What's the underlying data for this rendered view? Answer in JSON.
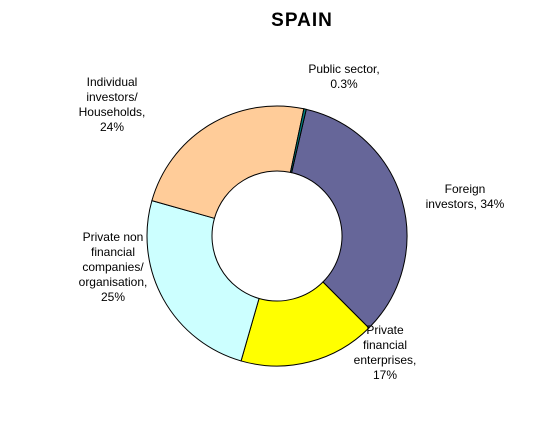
{
  "chart_data": {
    "type": "pie",
    "variant": "doughnut",
    "title": "SPAIN",
    "grid": false,
    "legend": "none",
    "slices": [
      {
        "category": "Foreign investors",
        "value": 34,
        "label": [
          "Foreign",
          "investors, 34%"
        ],
        "color": "#666699"
      },
      {
        "category": "Private financial enterprises",
        "value": 17,
        "label": [
          "Private",
          "financial",
          "enterprises,",
          "17%"
        ],
        "color": "#ffff00"
      },
      {
        "category": "Private non financial companies/ organisation",
        "value": 25,
        "label": [
          "Private non",
          "financial",
          "companies/",
          "organisation,",
          "25%"
        ],
        "color": "#ccffff"
      },
      {
        "category": "Individual investors/ Households",
        "value": 24,
        "label": [
          "Individual",
          "investors/",
          "Households,",
          "24%"
        ],
        "color": "#ffcc99"
      },
      {
        "category": "Public sector",
        "value": 0.3,
        "label": [
          "Public sector,",
          "0.3%"
        ],
        "color": "#008080"
      }
    ]
  }
}
